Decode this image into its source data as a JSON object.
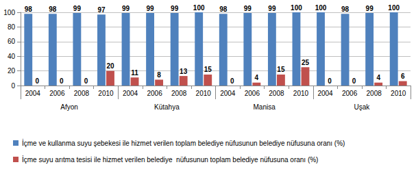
{
  "chart_data": {
    "type": "bar",
    "categories": [
      "2004",
      "2006",
      "2008",
      "2010",
      "2004",
      "2006",
      "2008",
      "2010",
      "2004",
      "2006",
      "2008",
      "2010",
      "2004",
      "2006",
      "2008",
      "2010"
    ],
    "groups": [
      "Afyon",
      "Kütahya",
      "Manisa",
      "Uşak"
    ],
    "series": [
      {
        "name": "İçme ve kullanma suyu şebekesi ile hizmet verilen toplam belediye nüfusunun belediye nüfusuna oranı (%)",
        "color": "#4f81bd",
        "values": [
          98,
          98,
          99,
          97,
          99,
          99,
          99,
          100,
          98,
          99,
          99,
          100,
          100,
          98,
          99,
          100
        ]
      },
      {
        "name": "İçme suyu arıtma tesisi ile hizmet verilen belediye  nüfusunun toplam belediye nüfusuna oranı (%)",
        "color": "#c0504d",
        "values": [
          0,
          0,
          0,
          20,
          11,
          8,
          13,
          15,
          0,
          4,
          15,
          25,
          0,
          0,
          4,
          6
        ]
      }
    ],
    "ylim": [
      0,
      100
    ],
    "yticks": [
      0,
      20,
      40,
      60,
      80,
      100
    ],
    "grid": true,
    "data_labels": true,
    "legend": "bottom"
  }
}
